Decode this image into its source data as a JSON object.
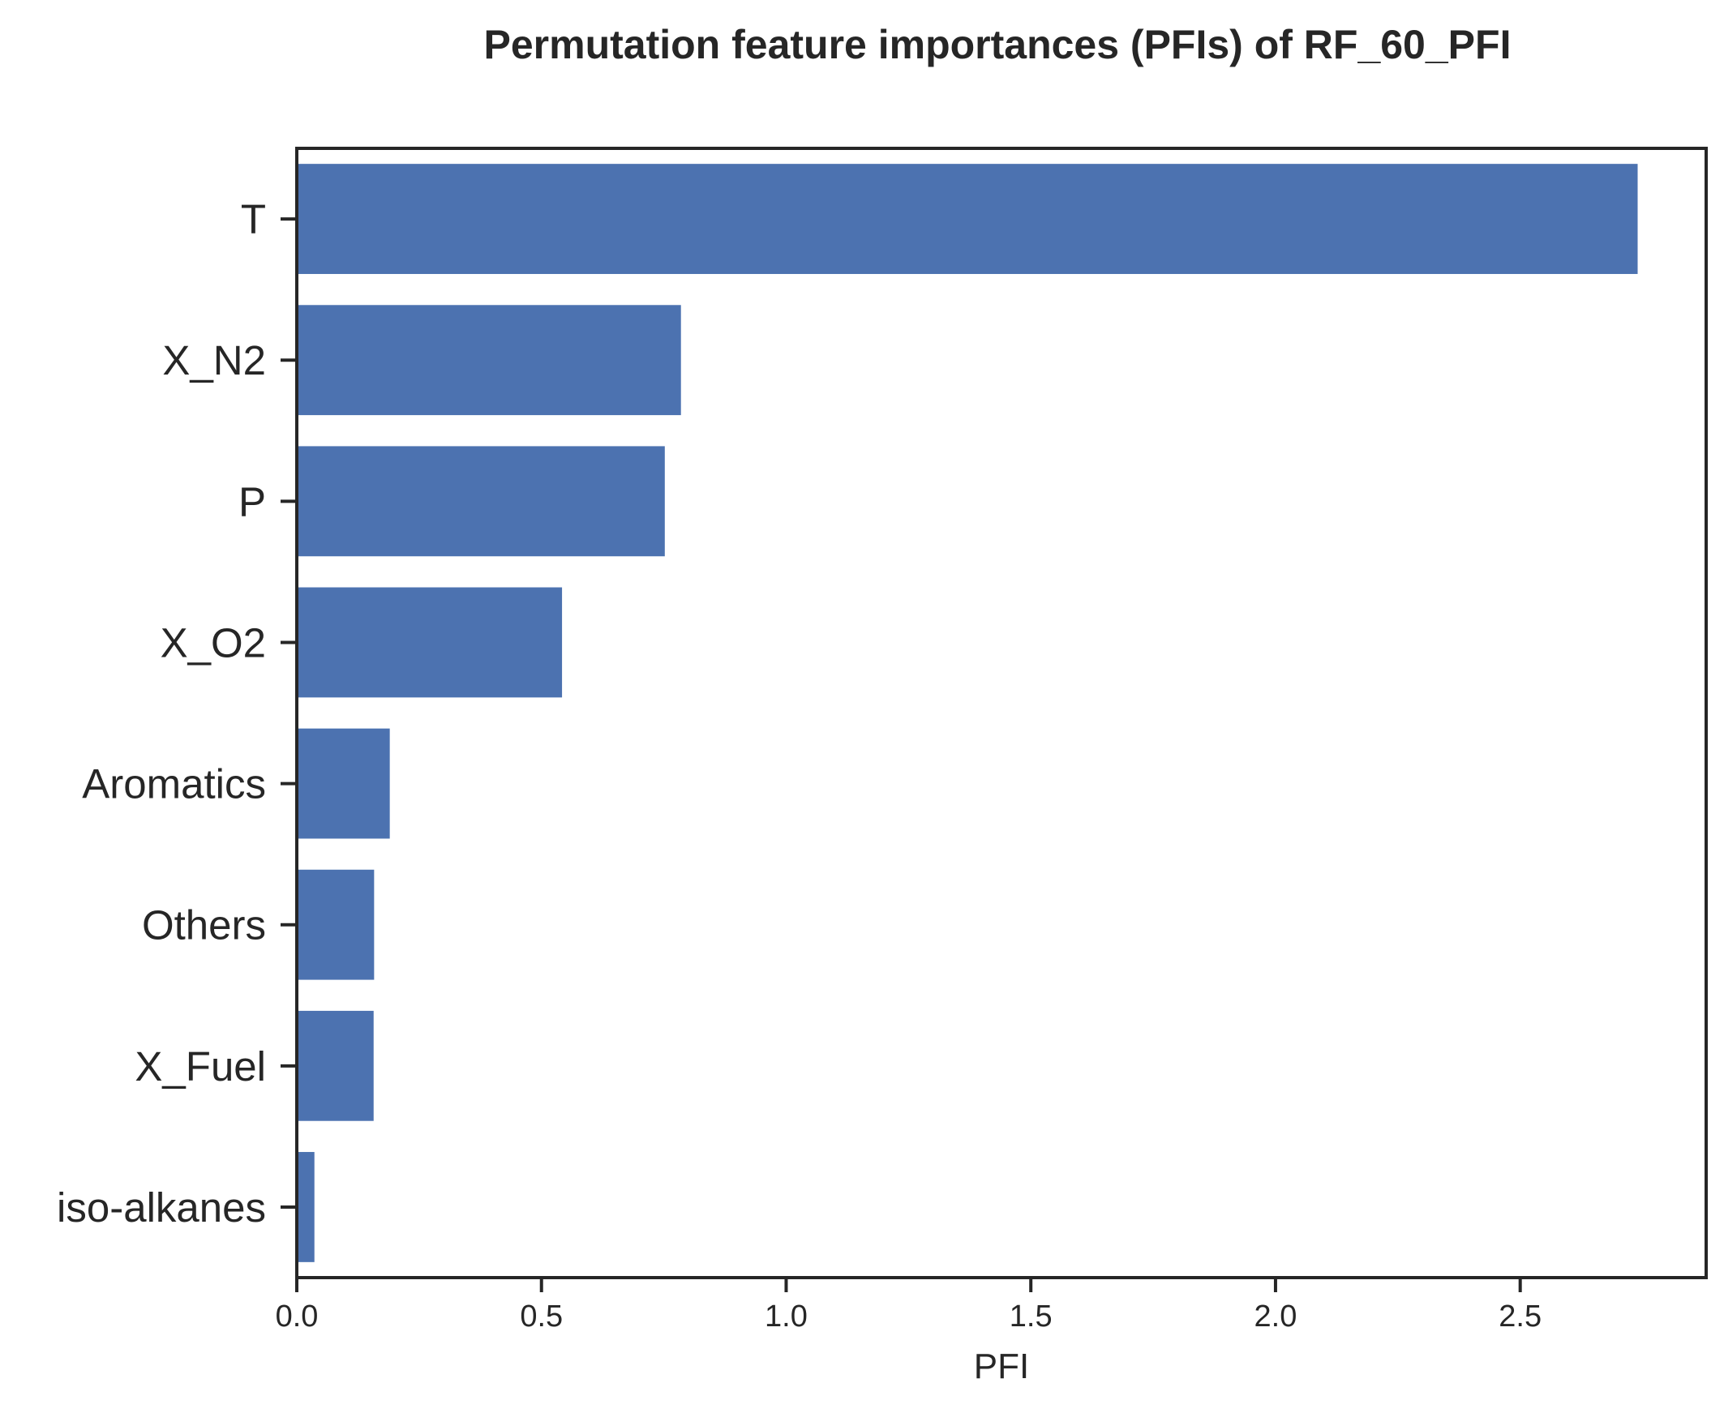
{
  "chart_data": {
    "type": "bar",
    "orientation": "horizontal",
    "title": "Permutation feature importances (PFIs) of RF_60_PFI",
    "xlabel": "PFI",
    "ylabel": "",
    "categories": [
      "T",
      "X_N2",
      "P",
      "X_O2",
      "Aromatics",
      "Others",
      "X_Fuel",
      "iso-alkanes"
    ],
    "values": [
      2.74,
      0.785,
      0.752,
      0.542,
      0.19,
      0.158,
      0.157,
      0.036
    ],
    "xlim": [
      0,
      2.88
    ],
    "xticks": [
      0.0,
      0.5,
      1.0,
      1.5,
      2.0,
      2.5
    ],
    "xtick_labels": [
      "0.0",
      "0.5",
      "1.0",
      "1.5",
      "2.0",
      "2.5"
    ],
    "grid": false,
    "bar_color": "#4c72b0",
    "axis_color": "#262626"
  }
}
